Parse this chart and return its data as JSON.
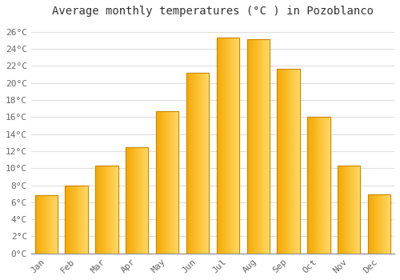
{
  "title": "Average monthly temperatures (°C ) in Pozoblanco",
  "months": [
    "Jan",
    "Feb",
    "Mar",
    "Apr",
    "May",
    "Jun",
    "Jul",
    "Aug",
    "Sep",
    "Oct",
    "Nov",
    "Dec"
  ],
  "temperatures": [
    6.8,
    8.0,
    10.3,
    12.5,
    16.7,
    21.2,
    25.3,
    25.1,
    21.7,
    16.0,
    10.3,
    6.9
  ],
  "bar_color_left": "#F5A800",
  "bar_color_right": "#FFD966",
  "bar_edge_color": "#CC8800",
  "ylim": [
    0,
    27
  ],
  "yticks": [
    0,
    2,
    4,
    6,
    8,
    10,
    12,
    14,
    16,
    18,
    20,
    22,
    24,
    26
  ],
  "ytick_labels": [
    "0°C",
    "2°C",
    "4°C",
    "6°C",
    "8°C",
    "10°C",
    "12°C",
    "14°C",
    "16°C",
    "18°C",
    "20°C",
    "22°C",
    "24°C",
    "26°C"
  ],
  "background_color": "#ffffff",
  "grid_color": "#dddddd",
  "title_fontsize": 10,
  "tick_fontsize": 8,
  "font_family": "monospace",
  "bar_width": 0.75
}
